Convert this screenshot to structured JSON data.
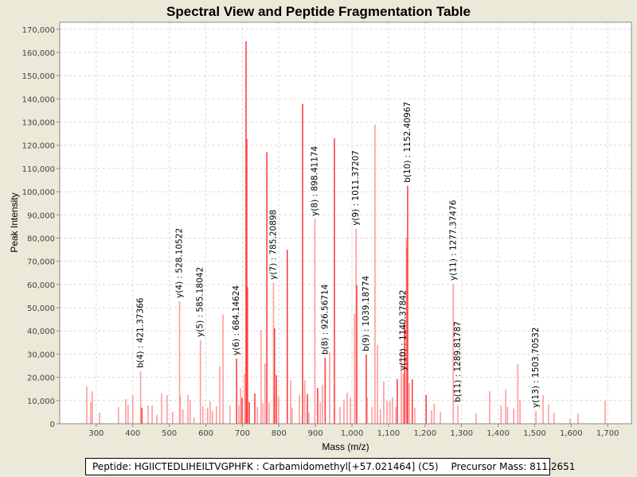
{
  "chart_data": {
    "type": "bar",
    "title": "Spectral View and Peptide Fragmentation Table",
    "xlabel": "Mass (m/z)",
    "ylabel": "Peak Intensity",
    "xlim": [
      200,
      1765
    ],
    "ylim": [
      0,
      173000
    ],
    "grid": true,
    "x_ticks": [
      300,
      400,
      500,
      600,
      700,
      800,
      900,
      1000,
      1100,
      1200,
      1300,
      1400,
      1500,
      1600,
      1700
    ],
    "x_tick_labels": [
      "300",
      "400",
      "500",
      "600",
      "700",
      "800",
      "900",
      "1,000",
      "1,100",
      "1,200",
      "1,300",
      "1,400",
      "1,500",
      "1,600",
      "1,700"
    ],
    "y_ticks": [
      0,
      10000,
      20000,
      30000,
      40000,
      50000,
      60000,
      70000,
      80000,
      90000,
      100000,
      110000,
      120000,
      130000,
      140000,
      150000,
      160000,
      170000
    ],
    "y_tick_labels": [
      "0",
      "10,000",
      "20,000",
      "30,000",
      "40,000",
      "50,000",
      "60,000",
      "70,000",
      "80,000",
      "90,000",
      "100,000",
      "110,000",
      "120,000",
      "130,000",
      "140,000",
      "150,000",
      "160,000",
      "170,000"
    ],
    "colors": {
      "peak": "#ff9c9c",
      "peak_strong": "#ff4040",
      "grid": "#d8d8d8"
    },
    "peaks": [
      [
        274,
        16100,
        0
      ],
      [
        285,
        9300,
        0
      ],
      [
        289,
        14000,
        0
      ],
      [
        309,
        4800,
        0
      ],
      [
        361,
        7200,
        0
      ],
      [
        381,
        10600,
        0
      ],
      [
        387,
        8200,
        0
      ],
      [
        400,
        12300,
        0
      ],
      [
        421.37,
        22600,
        0
      ],
      [
        425,
        6900,
        1
      ],
      [
        442,
        7900,
        0
      ],
      [
        453,
        7900,
        0
      ],
      [
        466,
        3800,
        0
      ],
      [
        479,
        13000,
        0
      ],
      [
        494,
        12300,
        0
      ],
      [
        509,
        5100,
        0
      ],
      [
        528.1,
        52800,
        0
      ],
      [
        530,
        12300,
        0
      ],
      [
        537,
        6200,
        0
      ],
      [
        551,
        12300,
        0
      ],
      [
        557,
        10300,
        0
      ],
      [
        568,
        2700,
        0
      ],
      [
        585.18,
        36000,
        0
      ],
      [
        592,
        7500,
        0
      ],
      [
        605,
        6900,
        0
      ],
      [
        612,
        9600,
        0
      ],
      [
        618,
        5500,
        0
      ],
      [
        629,
        7500,
        0
      ],
      [
        638,
        24700,
        0
      ],
      [
        647,
        47000,
        0
      ],
      [
        666,
        7900,
        0
      ],
      [
        684.15,
        28100,
        1
      ],
      [
        690,
        7900,
        0
      ],
      [
        695,
        15400,
        0
      ],
      [
        699,
        11300,
        1
      ],
      [
        706,
        21600,
        0
      ],
      [
        710,
        164800,
        1
      ],
      [
        712,
        122700,
        1
      ],
      [
        714,
        58900,
        1
      ],
      [
        719,
        9300,
        1
      ],
      [
        734,
        13000,
        1
      ],
      [
        741,
        7200,
        0
      ],
      [
        751,
        40400,
        0
      ],
      [
        756,
        8900,
        0
      ],
      [
        762,
        26000,
        0
      ],
      [
        767,
        117000,
        1
      ],
      [
        773,
        9300,
        0
      ],
      [
        785.21,
        60700,
        0
      ],
      [
        788,
        41100,
        1
      ],
      [
        793,
        20900,
        1
      ],
      [
        799,
        11600,
        0
      ],
      [
        823,
        75000,
        1
      ],
      [
        832,
        18800,
        0
      ],
      [
        836,
        6900,
        0
      ],
      [
        856,
        12300,
        0
      ],
      [
        865,
        137800,
        1
      ],
      [
        871,
        18800,
        0
      ],
      [
        878,
        12700,
        1
      ],
      [
        882,
        4800,
        0
      ],
      [
        898.41,
        88100,
        0
      ],
      [
        906,
        15400,
        1
      ],
      [
        913,
        9300,
        0
      ],
      [
        919,
        16800,
        0
      ],
      [
        926.57,
        28400,
        1
      ],
      [
        939,
        30800,
        0
      ],
      [
        952,
        123000,
        1
      ],
      [
        967,
        7200,
        0
      ],
      [
        978,
        10300,
        0
      ],
      [
        987,
        13400,
        0
      ],
      [
        996,
        11300,
        0
      ],
      [
        1007,
        47300,
        0
      ],
      [
        1011.37,
        84000,
        0
      ],
      [
        1013,
        59600,
        1
      ],
      [
        1039.19,
        29800,
        1
      ],
      [
        1042,
        11300,
        0
      ],
      [
        1055,
        7200,
        0
      ],
      [
        1063,
        128900,
        0
      ],
      [
        1070,
        33900,
        0
      ],
      [
        1078,
        6200,
        0
      ],
      [
        1087,
        18200,
        0
      ],
      [
        1096,
        9900,
        0
      ],
      [
        1104,
        9600,
        0
      ],
      [
        1111,
        11300,
        0
      ],
      [
        1120,
        7200,
        0
      ],
      [
        1124,
        19200,
        1
      ],
      [
        1135,
        32200,
        0
      ],
      [
        1140.38,
        21600,
        0
      ],
      [
        1144,
        43200,
        1
      ],
      [
        1149,
        80200,
        0
      ],
      [
        1151,
        75400,
        1
      ],
      [
        1152.41,
        102500,
        1
      ],
      [
        1157,
        17500,
        0
      ],
      [
        1165,
        19200,
        1
      ],
      [
        1172,
        6900,
        0
      ],
      [
        1203,
        12300,
        1
      ],
      [
        1218,
        5800,
        0
      ],
      [
        1225,
        8600,
        0
      ],
      [
        1242,
        5100,
        0
      ],
      [
        1277.37,
        60300,
        0
      ],
      [
        1289.82,
        7900,
        0
      ],
      [
        1340,
        4500,
        0
      ],
      [
        1377,
        14000,
        0
      ],
      [
        1408,
        7900,
        0
      ],
      [
        1421,
        14700,
        0
      ],
      [
        1426,
        7200,
        0
      ],
      [
        1443,
        6500,
        0
      ],
      [
        1454,
        25700,
        0
      ],
      [
        1460,
        10300,
        0
      ],
      [
        1503.71,
        5500,
        0
      ],
      [
        1523,
        12300,
        0
      ],
      [
        1538,
        8200,
        0
      ],
      [
        1553,
        4800,
        0
      ],
      [
        1597,
        2100,
        0
      ],
      [
        1619,
        4500,
        0
      ],
      [
        1693,
        9900,
        0
      ]
    ],
    "annotations": [
      {
        "mz": 421.37,
        "intensity": 22600,
        "label": "b(4) : 421.37366"
      },
      {
        "mz": 528.1,
        "intensity": 52800,
        "label": "y(4) : 528.10522"
      },
      {
        "mz": 585.18,
        "intensity": 36000,
        "label": "y(5) : 585.18042"
      },
      {
        "mz": 684.15,
        "intensity": 28100,
        "label": "y(6) : 684.14624"
      },
      {
        "mz": 785.21,
        "intensity": 60700,
        "label": "y(7) : 785.20898"
      },
      {
        "mz": 898.41,
        "intensity": 88100,
        "label": "y(8) : 898.41174"
      },
      {
        "mz": 926.57,
        "intensity": 28400,
        "label": "b(8) : 926.56714"
      },
      {
        "mz": 1011.37,
        "intensity": 84000,
        "label": "y(9) : 1011.37207"
      },
      {
        "mz": 1039.19,
        "intensity": 29800,
        "label": "b(9) : 1039.18774"
      },
      {
        "mz": 1140.38,
        "intensity": 21600,
        "label": "y(10) : 1140.37842"
      },
      {
        "mz": 1152.41,
        "intensity": 102500,
        "label": "b(10) : 1152.40967"
      },
      {
        "mz": 1277.37,
        "intensity": 60300,
        "label": "y(11) : 1277.37476"
      },
      {
        "mz": 1289.82,
        "intensity": 7900,
        "label": "b(11) : 1289.81787"
      },
      {
        "mz": 1503.71,
        "intensity": 5500,
        "label": "y(13) : 1503.70532"
      }
    ]
  },
  "footer": {
    "peptide": "Peptide: HGIICTEDLIHEILTVGPHFK : Carbamidomethyl[+57.021464] (C5)",
    "precursor": "Precursor Mass: 811.2651"
  }
}
